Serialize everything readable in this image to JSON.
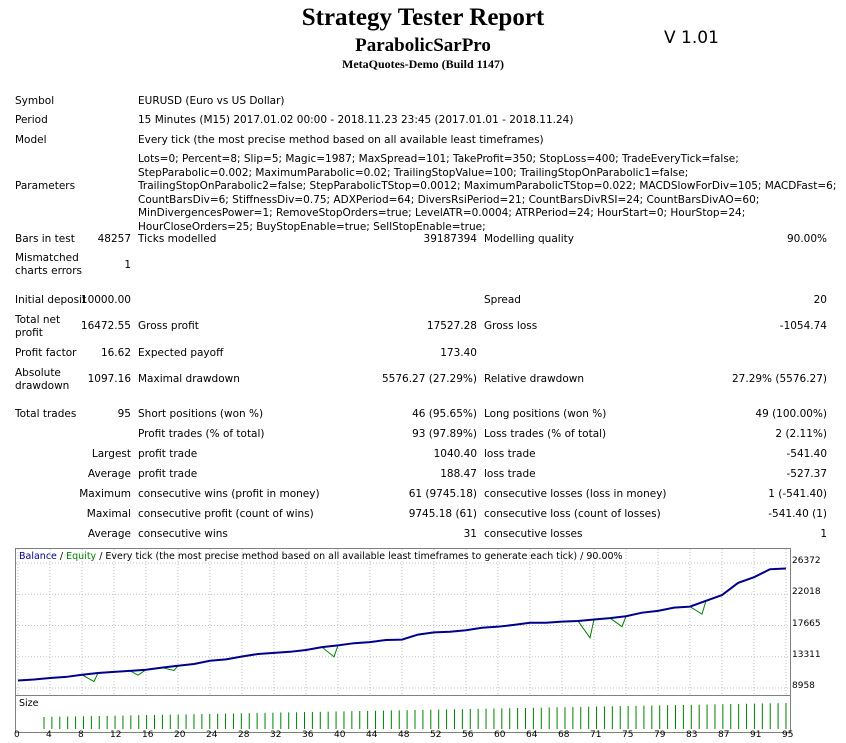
{
  "header": {
    "title": "Strategy Tester Report",
    "expert": "ParabolicSarPro",
    "server": "MetaQuotes-Demo (Build 1147)",
    "version": "V 1.01"
  },
  "info": {
    "symbol_label": "Symbol",
    "symbol_value": "EURUSD (Euro vs US Dollar)",
    "period_label": "Period",
    "period_value": "15 Minutes (M15) 2017.01.02 00:00 - 2018.11.23 23:45 (2017.01.01 - 2018.11.24)",
    "model_label": "Model",
    "model_value": "Every tick (the most precise method based on all available least timeframes)",
    "parameters_label": "Parameters",
    "parameters_value": "Lots=0; Percent=8; Slip=5; Magic=1987; MaxSpread=101; TakeProfit=350; StopLoss=400; TradeEveryTick=false; StepParabolic=0.002; MaximumParabolic=0.02; TrailingStopValue=100; TrailingStopOnParabolic1=false; TrailingStopOnParabolic2=false; StepParabolicTStop=0.0012; MaximumParabolicTStop=0.022; MACDSlowForDiv=105; MACDFast=6; CountBarsDiv=6; StiffnessDiv=0.75; ADXPeriod=64; DiversRsiPeriod=21; CountBarsDivRSI=24; CountBarsDivAO=60; MinDivergencesPower=1; RemoveStopOrders=true; LevelATR=0.0004; ATRPeriod=24; HourStart=0; HourStop=24; HourCloseOrders=25; BuyStopEnable=true; SellStopEnable=true;"
  },
  "stats": {
    "bars_label": "Bars in test",
    "bars_value": "48257",
    "ticks_label": "Ticks modelled",
    "ticks_value": "39187394",
    "quality_label": "Modelling quality",
    "quality_value": "90.00%",
    "mismatch_label_1": "Mismatched",
    "mismatch_label_2": "charts errors",
    "mismatch_value": "1",
    "deposit_label": "Initial deposit",
    "deposit_value": "10000.00",
    "spread_label": "Spread",
    "spread_value": "20",
    "netprofit_label_1": "Total net",
    "netprofit_label_2": "profit",
    "netprofit_value": "16472.55",
    "grossprofit_label": "Gross profit",
    "grossprofit_value": "17527.28",
    "grossloss_label": "Gross loss",
    "grossloss_value": "-1054.74",
    "pf_label": "Profit factor",
    "pf_value": "16.62",
    "payoff_label": "Expected payoff",
    "payoff_value": "173.40",
    "absdd_label_1": "Absolute",
    "absdd_label_2": "drawdown",
    "absdd_value": "1097.16",
    "maxdd_label": "Maximal drawdown",
    "maxdd_value": "5576.27 (27.29%)",
    "reldd_label": "Relative drawdown",
    "reldd_value": "27.29% (5576.27)",
    "trades_label": "Total trades",
    "trades_value": "95",
    "short_label": "Short positions (won %)",
    "short_value": "46 (95.65%)",
    "long_label": "Long positions (won %)",
    "long_value": "49 (100.00%)",
    "profit_trades_label": "Profit trades (% of total)",
    "profit_trades_value": "93 (97.89%)",
    "loss_trades_label": "Loss trades (% of total)",
    "loss_trades_value": "2 (2.11%)",
    "largest_label": "Largest",
    "largest_profit_label": "profit trade",
    "largest_profit_value": "1040.40",
    "largest_loss_label": "loss trade",
    "largest_loss_value": "-541.40",
    "average_label": "Average",
    "average_profit_label": "profit trade",
    "average_profit_value": "188.47",
    "average_loss_label": "loss trade",
    "average_loss_value": "-527.37",
    "maximum_label": "Maximum",
    "max_wins_label": "consecutive wins (profit in money)",
    "max_wins_value": "61 (9745.18)",
    "max_losses_label": "consecutive losses (loss in money)",
    "max_losses_value": "1 (-541.40)",
    "maximal_label": "Maximal",
    "maximal_profit_label": "consecutive profit (count of wins)",
    "maximal_profit_value": "9745.18 (61)",
    "maximal_loss_label": "consecutive loss (count of losses)",
    "maximal_loss_value": "-541.40 (1)",
    "avg_consec_label": "Average",
    "avg_wins_label": "consecutive wins",
    "avg_wins_value": "31",
    "avg_losses_label": "consecutive losses",
    "avg_losses_value": "1"
  },
  "chart_labels": {
    "balance": "Balance",
    "sep": " / ",
    "equity": "Equity",
    "rest": " / Every tick (the most precise method based on all available least timeframes to generate each tick) / 90.00%",
    "size": "Size"
  },
  "chart_data": {
    "type": "line",
    "y_ticks": [
      "26372",
      "22018",
      "17665",
      "13311",
      "8958"
    ],
    "ylim": [
      8958,
      26372
    ],
    "x_ticks": [
      "0",
      "4",
      "8",
      "12",
      "16",
      "20",
      "24",
      "28",
      "32",
      "36",
      "40",
      "44",
      "48",
      "52",
      "56",
      "60",
      "64",
      "68",
      "71",
      "75",
      "79",
      "83",
      "87",
      "91",
      "95"
    ],
    "xlim": [
      0,
      96
    ],
    "series": [
      {
        "name": "Balance",
        "color": "#00008B",
        "x": [
          0,
          2,
          4,
          6,
          8,
          10,
          12,
          14,
          16,
          18,
          20,
          22,
          24,
          26,
          28,
          30,
          32,
          34,
          36,
          38,
          40,
          42,
          44,
          46,
          48,
          50,
          52,
          54,
          56,
          58,
          60,
          62,
          64,
          66,
          68,
          70,
          72,
          74,
          76,
          78,
          80,
          82,
          84,
          86,
          88,
          90,
          92,
          94,
          96
        ],
        "values": [
          10000,
          10150,
          10350,
          10500,
          10800,
          11050,
          11200,
          11350,
          11500,
          11800,
          12050,
          12300,
          12750,
          12950,
          13350,
          13700,
          13850,
          14000,
          14250,
          14650,
          14900,
          15200,
          15350,
          15650,
          15700,
          16400,
          16700,
          16800,
          17000,
          17350,
          17500,
          17750,
          18050,
          18050,
          18200,
          18300,
          18500,
          18700,
          18950,
          19450,
          19700,
          20150,
          20300,
          21100,
          21900,
          23600,
          24400,
          25500,
          25600
        ]
      },
      {
        "name": "Equity",
        "color": "#008000",
        "x": [
          0,
          2,
          4,
          6,
          8,
          9.5,
          10,
          12,
          14,
          15,
          16,
          18,
          19.5,
          20,
          22,
          24,
          26,
          28,
          30,
          32,
          34,
          36,
          38,
          39.5,
          40,
          42,
          44,
          46,
          48,
          50,
          52,
          54,
          56,
          58,
          60,
          62,
          64,
          66,
          68,
          70,
          71.5,
          72,
          74,
          75.5,
          76,
          78,
          80,
          82,
          84,
          85.5,
          86,
          88,
          90,
          92,
          94,
          96
        ],
        "values": [
          10000,
          10150,
          10350,
          10500,
          10800,
          9850,
          11050,
          11200,
          11350,
          10750,
          11500,
          11800,
          11400,
          12050,
          12300,
          12750,
          12950,
          13350,
          13700,
          13850,
          14000,
          14250,
          14650,
          13300,
          14900,
          15200,
          15350,
          15650,
          15700,
          16400,
          16700,
          16800,
          17000,
          17350,
          17500,
          17750,
          18050,
          18050,
          18200,
          18300,
          15950,
          18500,
          18700,
          17500,
          18950,
          19450,
          19700,
          20150,
          20300,
          19250,
          21100,
          21900,
          23600,
          24400,
          25500,
          25600
        ]
      }
    ],
    "size_bars": 95
  }
}
